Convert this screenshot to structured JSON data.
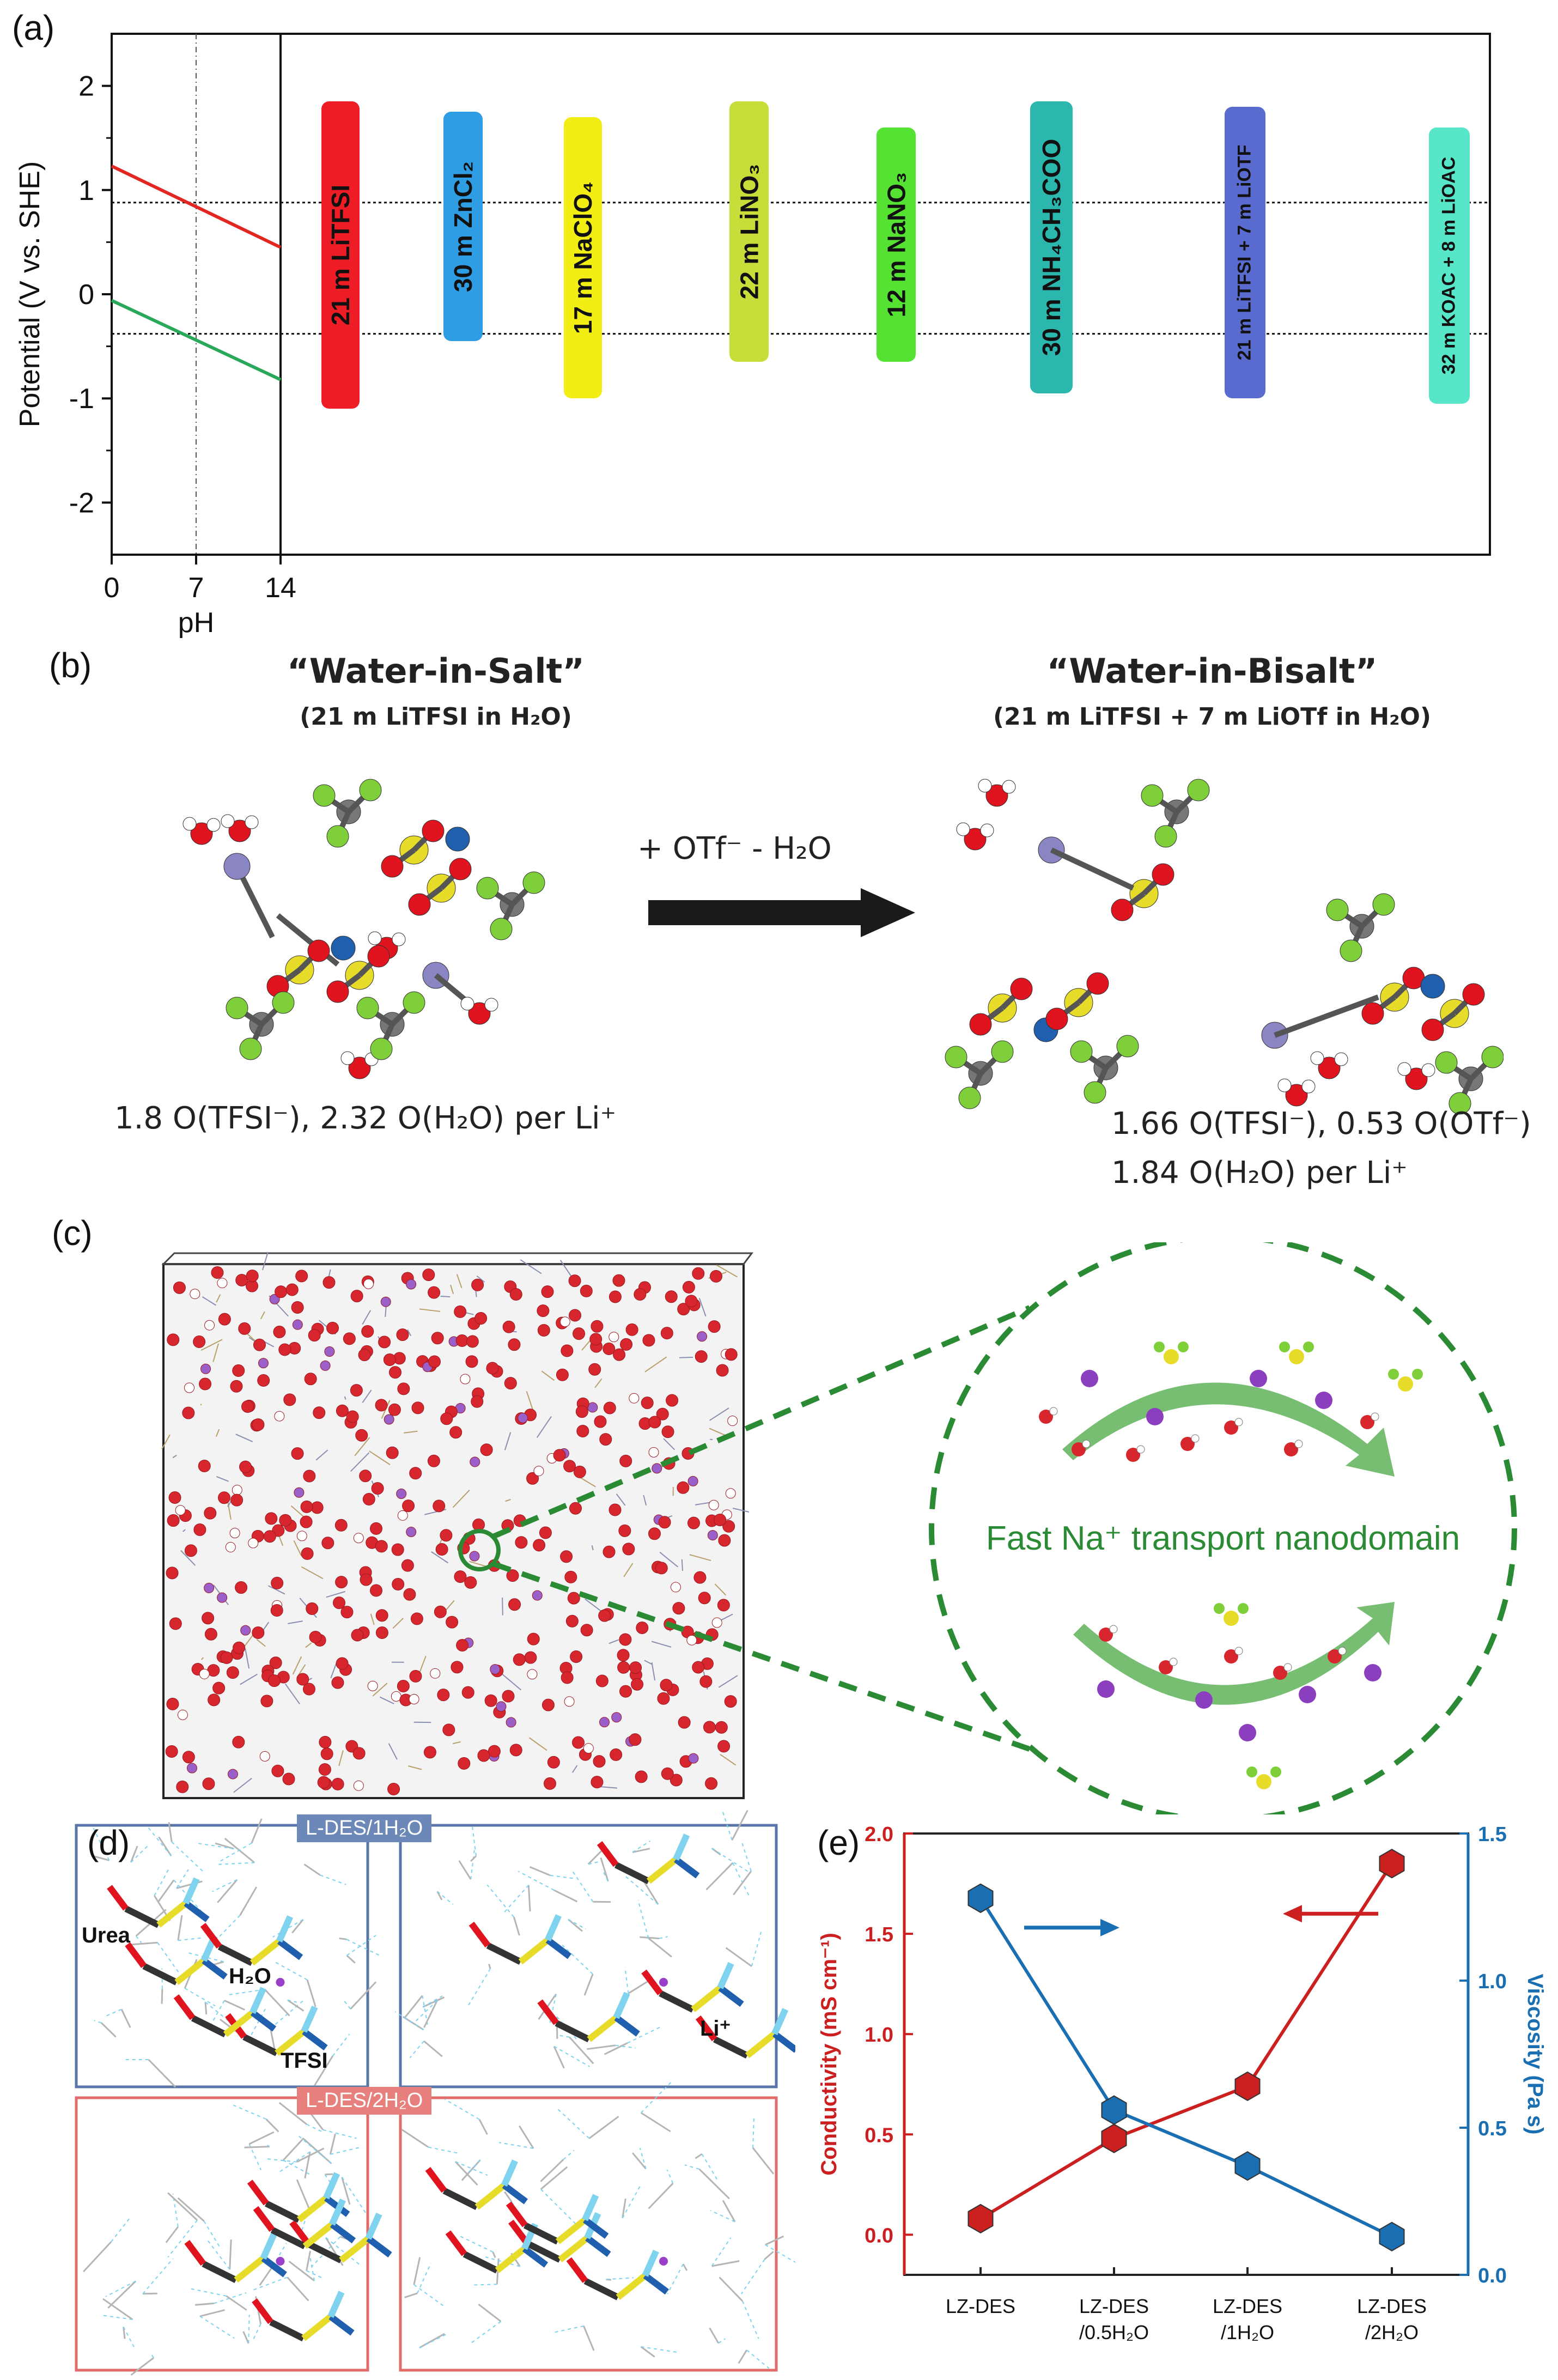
{
  "panels": {
    "a": "(a)",
    "b": "(b)",
    "c": "(c)",
    "d": "(d)",
    "e": "(e)"
  },
  "panel_a": {
    "ylabel": "Potential (V vs. SHE)",
    "xlabel": "pH",
    "y_ticks": [
      "2",
      "1",
      "0",
      "-1",
      "-2"
    ],
    "x_ticks": [
      "0",
      "7",
      "14"
    ],
    "ylim": [
      -2.5,
      2.5
    ],
    "stability_window": [
      -0.38,
      0.88
    ],
    "h2_line": {
      "pH": [
        0,
        14
      ],
      "V": [
        -0.06,
        -0.82
      ],
      "color": "#2aa85a"
    },
    "o2_line": {
      "pH": [
        0,
        14
      ],
      "V": [
        1.23,
        0.45
      ],
      "color": "#e3261f"
    },
    "electrolytes": [
      {
        "name": "21 m LiTFSI",
        "range": [
          -1.1,
          1.85
        ],
        "color": "#ee1c24"
      },
      {
        "name": "30 m ZnCl₂",
        "range": [
          -0.45,
          1.75
        ],
        "color": "#2f9de4"
      },
      {
        "name": "17 m NaClO₄",
        "range": [
          -1.0,
          1.7
        ],
        "color": "#f2ee14"
      },
      {
        "name": "22 m LiNO₃",
        "range": [
          -0.65,
          1.85
        ],
        "color": "#c8dd3a"
      },
      {
        "name": "12 m NaNO₃",
        "range": [
          -0.65,
          1.6
        ],
        "color": "#55e232"
      },
      {
        "name": "30 m NH₄CH₃COO",
        "range": [
          -0.95,
          1.85
        ],
        "color": "#2cb7ae"
      },
      {
        "name": "21 m LiTFSI + 7 m LiOTF",
        "range": [
          -1.0,
          1.8
        ],
        "color": "#5a6bd0"
      },
      {
        "name": "32 m KOAC + 8 m LiOAC",
        "range": [
          -1.05,
          1.6
        ],
        "color": "#57e6c8"
      }
    ]
  },
  "panel_b": {
    "left_title": "“Water-in-Salt”",
    "left_sub": "(21 m LiTFSI in H₂O)",
    "right_title": "“Water-in-Bisalt”",
    "right_sub": "(21 m LiTFSI + 7 m LiOTf in H₂O)",
    "arrow_label": "+ OTf⁻ - H₂O",
    "left_stat": "1.8 O(TFSI⁻), 2.32 O(H₂O) per Li⁺",
    "right_stat_1": "1.66 O(TFSI⁻), 0.53 O(OTf⁻)",
    "right_stat_2": "1.84 O(H₂O) per Li⁺"
  },
  "panel_c": {
    "label": "Fast Na⁺ transport nanodomain"
  },
  "panel_d": {
    "tag_top": "L-DES/1H₂O",
    "tag_bottom": "L-DES/2H₂O",
    "labels": {
      "urea": "Urea",
      "h2o": "H₂O",
      "tfsi": "TFSI",
      "li": "Li⁺"
    }
  },
  "chart_data": {
    "type": "line",
    "categories": [
      "LZ-DES",
      "LZ-DES\n/0.5H₂O",
      "LZ-DES\n/1H₂O",
      "LZ-DES\n/2H₂O"
    ],
    "ylabel_left": "Conductivity (mS cm⁻¹)",
    "ylabel_right": "Viscosity (Pa s)",
    "ylim_left": [
      -0.2,
      2.0
    ],
    "ylim_right": [
      0,
      1.5
    ],
    "left_ticks": [
      "0.0",
      "0.5",
      "1.0",
      "1.5",
      "2.0"
    ],
    "right_ticks": [
      "0.0",
      "0.5",
      "1.0",
      "1.5"
    ],
    "series": [
      {
        "name": "Conductivity",
        "axis": "left",
        "values": [
          0.08,
          0.48,
          0.74,
          1.85
        ],
        "color": "#cc1f1f"
      },
      {
        "name": "Viscosity",
        "axis": "right",
        "values": [
          1.28,
          0.56,
          0.37,
          0.13
        ],
        "color": "#1a6fb3"
      }
    ]
  }
}
